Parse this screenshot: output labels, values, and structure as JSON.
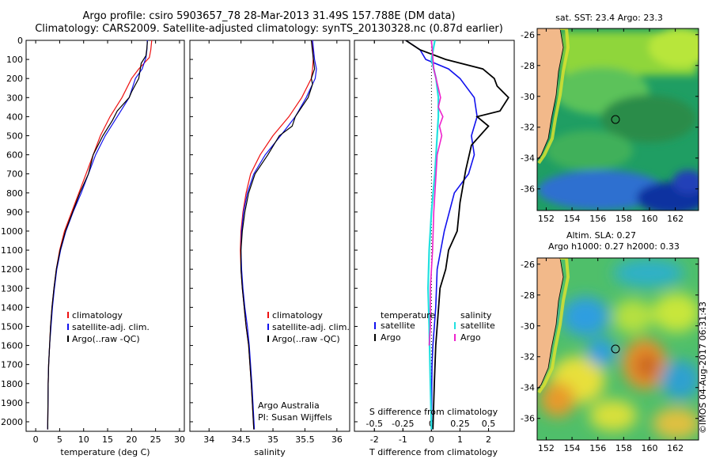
{
  "header": {
    "line1": "Argo profile: csiro 5903657_78 28-Mar-2013 31.49S 157.788E (DM data)",
    "line2": "Climatology: CARS2009. Satellite-adjusted climatology: synTS_20130328.nc (0.87d earlier)"
  },
  "stamp": "©IMOS 04-Aug-2017 06:31:43",
  "maps": {
    "sst": {
      "title": "sat. SST: 23.4  Argo: 23.3",
      "yticks": [
        "-26",
        "-28",
        "-30",
        "-32",
        "-34",
        "-36"
      ],
      "xticks": [
        "152",
        "154",
        "156",
        "158",
        "160",
        "162"
      ]
    },
    "sla": {
      "title1": "Altim. SLA: 0.27",
      "title2": "Argo h1000: 0.27  h2000: 0.33",
      "yticks": [
        "-26",
        "-28",
        "-30",
        "-32",
        "-34",
        "-36"
      ],
      "xticks": [
        "152",
        "154",
        "156",
        "158",
        "160",
        "162"
      ]
    }
  },
  "chart_data": [
    {
      "type": "line",
      "name": "temperature",
      "xlabel": "temperature (deg C)",
      "ylabel": "",
      "xlim": [
        -2,
        31
      ],
      "ylim": [
        2050,
        0
      ],
      "xticks": [
        0,
        5,
        10,
        15,
        20,
        25,
        30
      ],
      "yticks": [
        0,
        100,
        200,
        300,
        400,
        500,
        600,
        700,
        800,
        900,
        1000,
        1100,
        1200,
        1300,
        1400,
        1500,
        1600,
        1700,
        1800,
        1900,
        2000
      ],
      "legend": [
        "climatology",
        "satellite-adj. clim.",
        "Argo(..raw -QC)"
      ],
      "series": [
        {
          "name": "climatology",
          "color": "#ee1111",
          "x": [
            24.2,
            24.0,
            23.7,
            21.5,
            20.0,
            18.0,
            15.5,
            13.5,
            12.0,
            10.5,
            9.0,
            7.5,
            6.0,
            5.0,
            4.3,
            3.8,
            3.4,
            3.1,
            2.9,
            2.7,
            2.6,
            2.5
          ],
          "y": [
            0,
            50,
            90,
            150,
            200,
            300,
            400,
            500,
            600,
            700,
            800,
            900,
            1000,
            1100,
            1200,
            1300,
            1400,
            1500,
            1600,
            1700,
            1800,
            2040
          ]
        },
        {
          "name": "satellite-adj. clim.",
          "color": "#1111ee",
          "x": [
            23.3,
            23.2,
            23.0,
            22.2,
            20.8,
            19.5,
            17.0,
            14.5,
            12.5,
            11.0,
            9.5,
            7.8,
            6.3,
            5.2,
            4.4,
            3.9,
            3.5,
            3.2,
            2.9,
            2.7,
            2.6,
            2.5
          ],
          "y": [
            0,
            50,
            90,
            150,
            200,
            300,
            400,
            500,
            600,
            700,
            800,
            900,
            1000,
            1100,
            1200,
            1300,
            1400,
            1500,
            1600,
            1700,
            1800,
            2040
          ]
        },
        {
          "name": "Argo(..raw -QC)",
          "color": "#000000",
          "x": [
            23.3,
            23.2,
            23.0,
            22.0,
            21.5,
            20.0,
            19.5,
            17.0,
            16.0,
            14.0,
            12.0,
            11.0,
            9.2,
            7.7,
            6.2,
            5.1,
            4.3,
            3.8,
            3.4,
            3.1,
            2.9,
            2.7,
            2.6,
            2.5
          ],
          "y": [
            5,
            40,
            80,
            120,
            200,
            270,
            300,
            370,
            420,
            500,
            600,
            700,
            800,
            900,
            1000,
            1100,
            1200,
            1300,
            1400,
            1500,
            1600,
            1700,
            1800,
            2040
          ]
        }
      ]
    },
    {
      "type": "line",
      "name": "salinity",
      "xlabel": "salinity",
      "xlim": [
        33.7,
        36.2
      ],
      "ylim": [
        2050,
        0
      ],
      "xticks": [
        34,
        34.5,
        35,
        35.5,
        36
      ],
      "legend": [
        "climatology",
        "satellite-adj. clim.",
        "Argo(..raw -QC)"
      ],
      "annotation": [
        "Argo Australia",
        "PI: Susan Wijffels"
      ],
      "series": [
        {
          "name": "climatology",
          "color": "#ee1111",
          "x": [
            35.62,
            35.63,
            35.62,
            35.6,
            35.45,
            35.25,
            35.0,
            34.8,
            34.65,
            34.58,
            34.53,
            34.5,
            34.49,
            34.5,
            34.52,
            34.55,
            34.58,
            34.62,
            34.66,
            34.7
          ],
          "y": [
            0,
            100,
            150,
            200,
            300,
            400,
            500,
            600,
            700,
            800,
            900,
            1000,
            1100,
            1200,
            1300,
            1400,
            1500,
            1600,
            1800,
            2040
          ]
        },
        {
          "name": "satellite-adj. clim.",
          "color": "#1111ee",
          "x": [
            35.62,
            35.65,
            35.68,
            35.66,
            35.52,
            35.35,
            35.12,
            34.88,
            34.7,
            34.6,
            34.54,
            34.51,
            34.5,
            34.51,
            34.53,
            34.56,
            34.6,
            34.63,
            34.67,
            34.71
          ],
          "y": [
            0,
            100,
            150,
            200,
            300,
            400,
            500,
            600,
            700,
            800,
            900,
            1000,
            1100,
            1200,
            1300,
            1400,
            1500,
            1600,
            1800,
            2040
          ]
        },
        {
          "name": "Argo(..raw -QC)",
          "color": "#000000",
          "x": [
            35.6,
            35.62,
            35.65,
            35.6,
            35.62,
            35.55,
            35.45,
            35.35,
            35.3,
            35.1,
            34.92,
            34.72,
            34.62,
            34.56,
            34.52,
            34.5,
            34.5,
            34.52,
            34.55,
            34.58,
            34.62,
            34.66,
            34.7
          ],
          "y": [
            0,
            60,
            150,
            200,
            230,
            300,
            350,
            400,
            450,
            500,
            600,
            700,
            800,
            900,
            1000,
            1100,
            1200,
            1300,
            1400,
            1500,
            1600,
            1800,
            2040
          ]
        }
      ]
    },
    {
      "type": "line",
      "name": "difference from climatology",
      "xlabel": "T difference from climatology",
      "xlabel2": "S difference from climatology",
      "xlim": [
        -2.7,
        2.9
      ],
      "ylim": [
        2050,
        0
      ],
      "xticks": [
        -2,
        -1,
        0,
        1,
        2
      ],
      "xticks_secondary": [
        -0.5,
        -0.25,
        0,
        0.25,
        0.5
      ],
      "legend_titles": [
        "temperature",
        "salinity"
      ],
      "legend": [
        "satellite",
        "Argo",
        "satellite",
        "Argo"
      ],
      "series": [
        {
          "name": "temperature satellite",
          "color": "#1111ee",
          "x": [
            -0.9,
            -0.4,
            -0.2,
            0.6,
            1.0,
            1.5,
            1.6,
            1.4,
            1.5,
            1.3,
            0.8,
            0.45,
            0.2,
            0.15,
            0.1,
            0.05,
            0.02,
            0.01,
            0.0
          ],
          "y": [
            0,
            50,
            100,
            150,
            200,
            300,
            400,
            500,
            600,
            700,
            800,
            1000,
            1200,
            1400,
            1500,
            1600,
            1700,
            1800,
            2040
          ]
        },
        {
          "name": "temperature Argo",
          "color": "#000000",
          "x": [
            -0.9,
            -0.4,
            0.5,
            1.8,
            2.2,
            2.3,
            2.7,
            2.4,
            1.6,
            2.0,
            1.4,
            1.2,
            1.0,
            0.9,
            0.6,
            0.5,
            0.3,
            0.25,
            0.2,
            0.15,
            0.1,
            0.05
          ],
          "y": [
            0,
            50,
            100,
            150,
            200,
            240,
            300,
            370,
            400,
            450,
            550,
            680,
            850,
            1000,
            1100,
            1200,
            1300,
            1400,
            1500,
            1600,
            1800,
            2040
          ]
        },
        {
          "name": "salinity satellite",
          "color": "#22e0e0",
          "x": [
            0.03,
            0.0,
            0.02,
            0.04,
            0.06,
            0.06,
            0.05,
            0.04,
            0.03,
            0.0,
            -0.02,
            -0.03,
            -0.02,
            -0.01,
            0.0
          ],
          "y": [
            0,
            100,
            150,
            200,
            300,
            400,
            500,
            600,
            700,
            900,
            1100,
            1300,
            1500,
            1800,
            2040
          ]
        },
        {
          "name": "salinity Argo",
          "color": "#ee22cc",
          "x": [
            0.0,
            0.02,
            0.08,
            0.06,
            0.1,
            0.07,
            0.09,
            0.05,
            0.04,
            0.02,
            0.01,
            -0.01,
            -0.01,
            -0.02
          ],
          "y": [
            0,
            150,
            300,
            350,
            400,
            450,
            500,
            600,
            700,
            900,
            1100,
            1300,
            1500,
            1600
          ]
        }
      ]
    }
  ]
}
